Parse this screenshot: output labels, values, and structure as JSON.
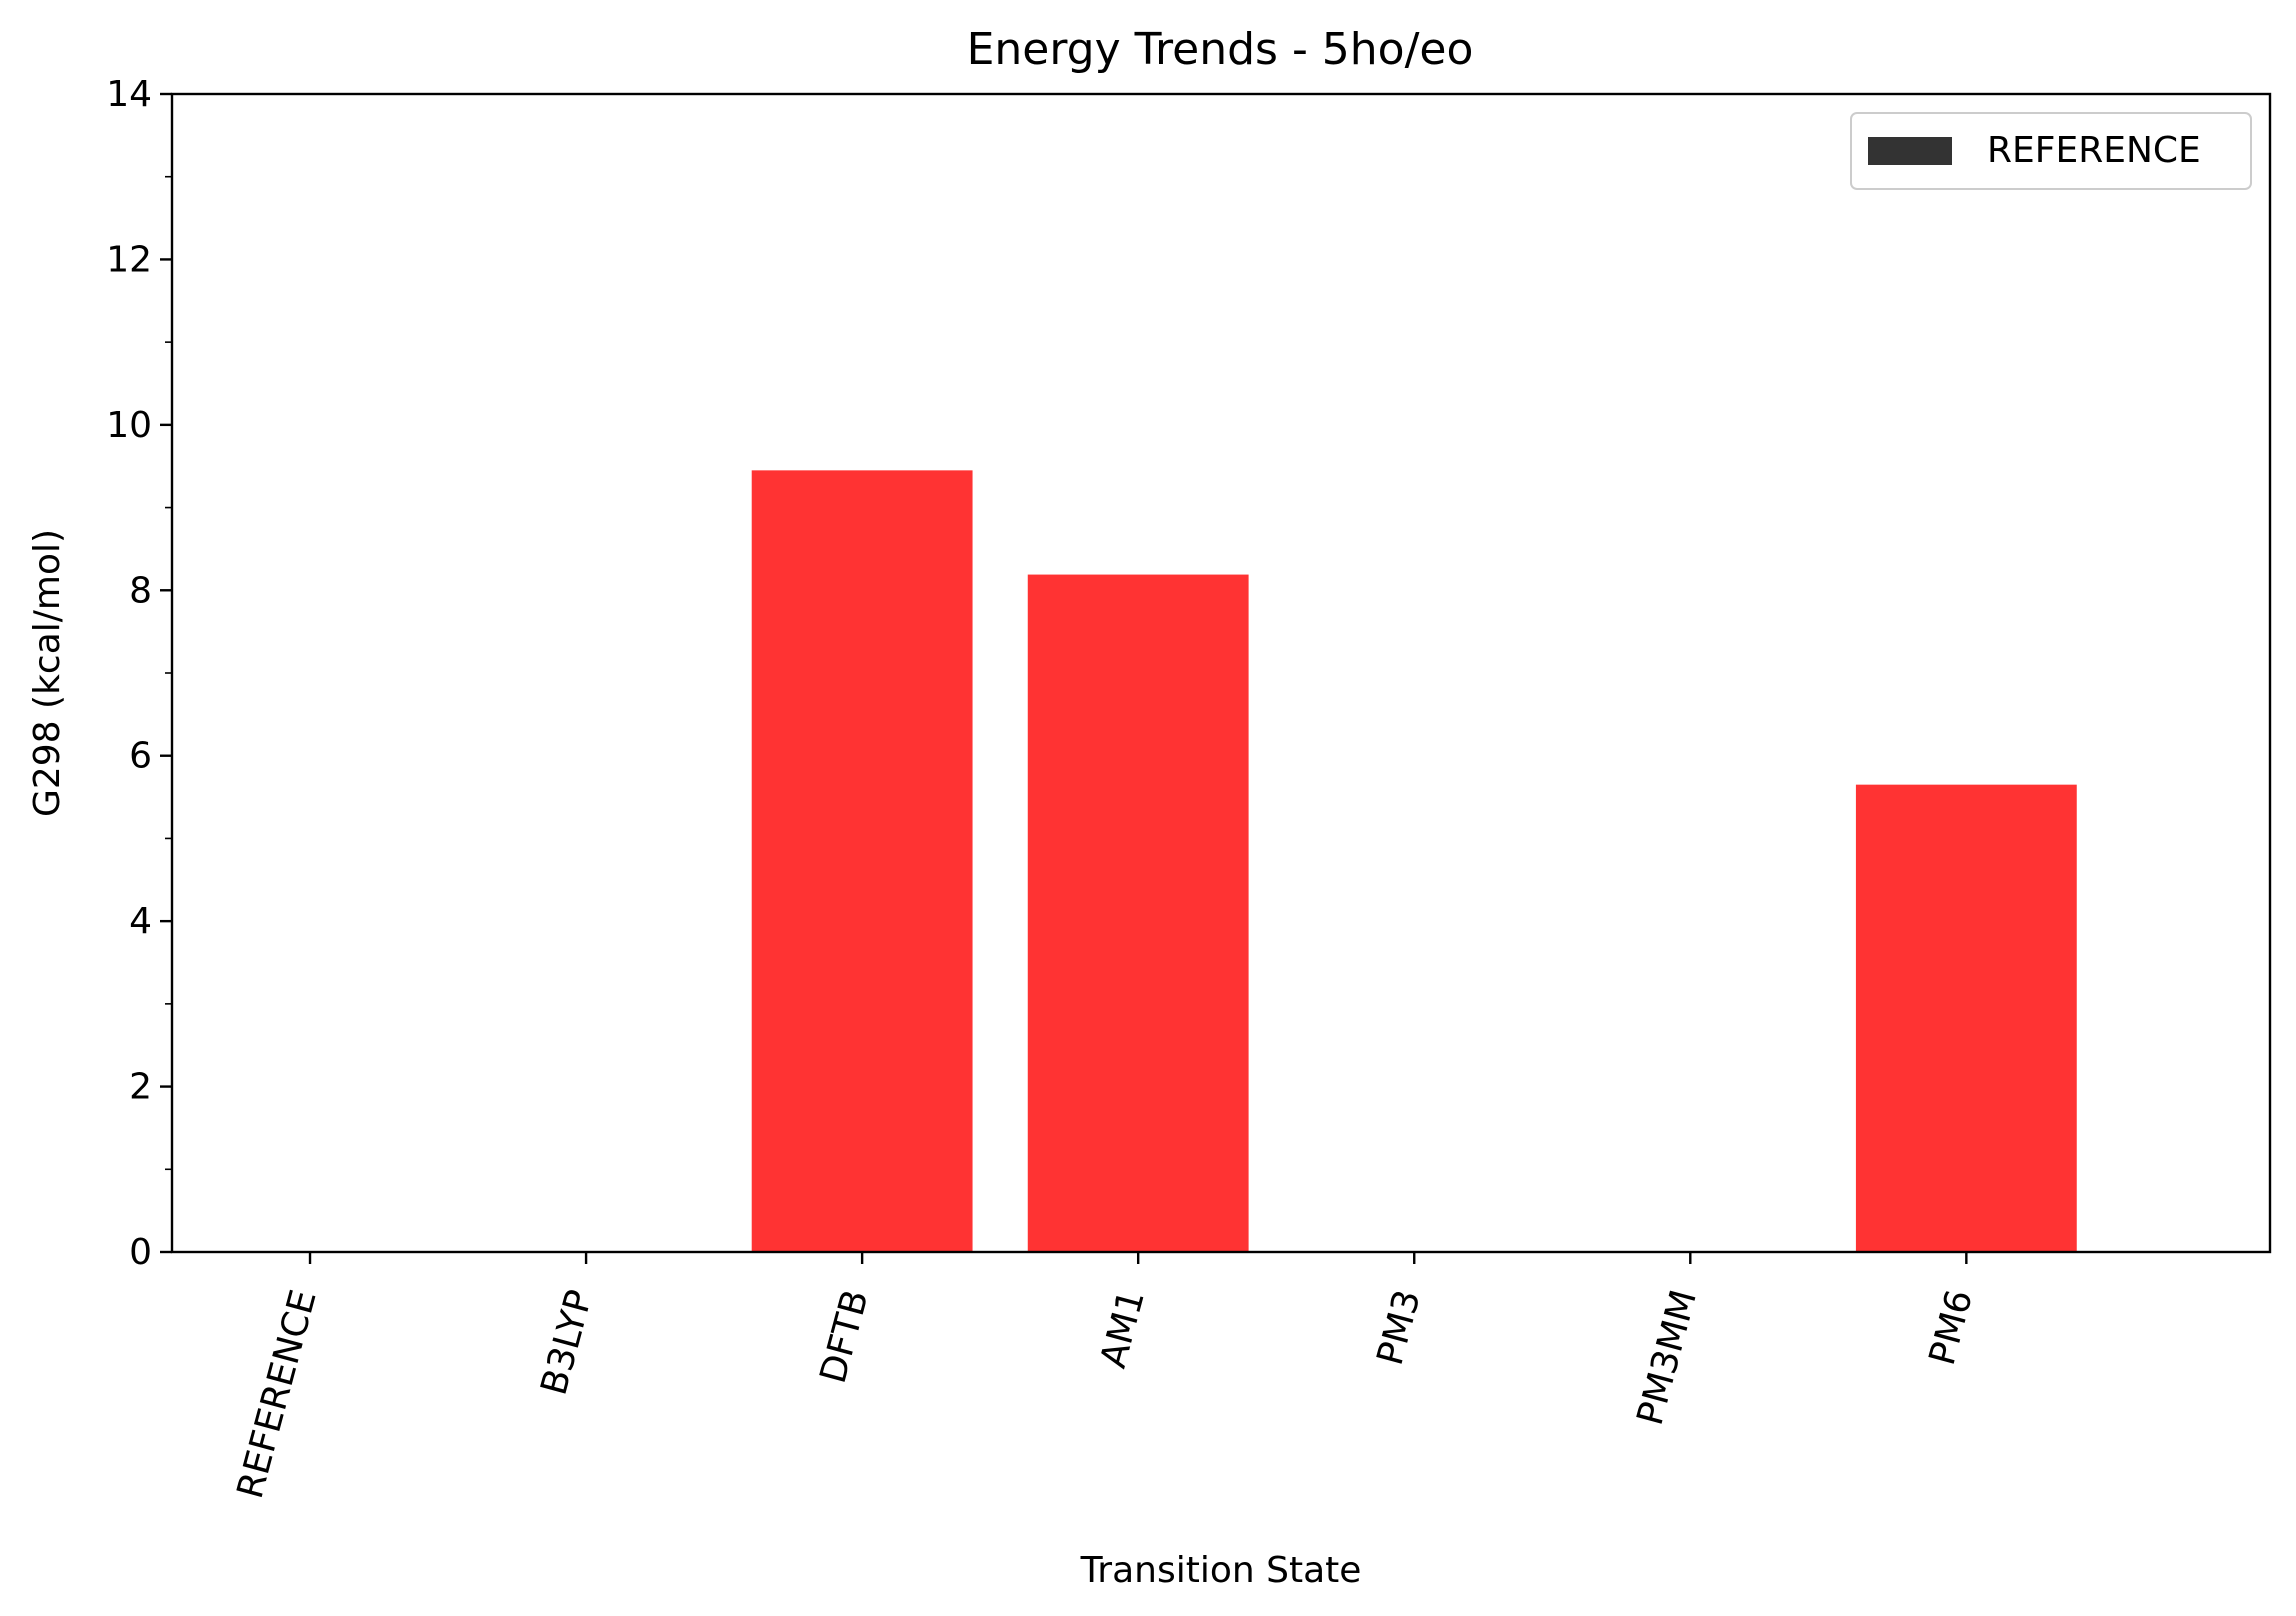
{
  "chart_data": {
    "type": "bar",
    "title": "Energy Trends - 5ho/eo",
    "xlabel": "Transition State",
    "ylabel": "G298 (kcal/mol)",
    "categories": [
      "REFERENCE",
      "B3LYP",
      "DFTB",
      "AM1",
      "PM3",
      "PM3MM",
      "PM6"
    ],
    "series": [
      {
        "name": "REFERENCE",
        "values": [
          0,
          0,
          9.45,
          8.19,
          0,
          0,
          5.65
        ]
      }
    ],
    "bar_color": "#ff3333",
    "legend_color": "#333333",
    "ylim": [
      0,
      14
    ],
    "yticks": [
      0,
      2,
      4,
      6,
      8,
      10,
      12,
      14
    ],
    "grid": false,
    "legend_position": "top-right"
  }
}
